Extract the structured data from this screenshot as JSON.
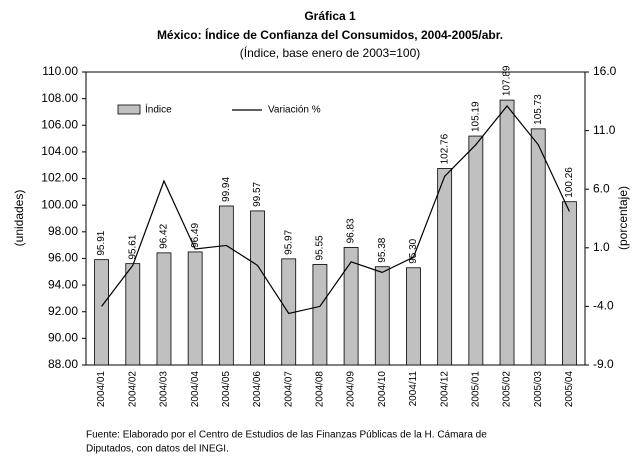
{
  "chart_data": {
    "type": "bar",
    "title": "Gráfica 1",
    "subtitle": "México: Índice de Confianza del Consumidos, 2004-2005/abr.",
    "note": "(Índice, base enero de 2003=100)",
    "ylabel": "(unidades)",
    "y2label": "(porcentaje)",
    "source": [
      "Fuente: Elaborado por el Centro de Estudios de las Finanzas Públicas de la H. Cámara de",
      "Diputados, con datos del INEGI."
    ],
    "categories": [
      "2004/01",
      "2004/02",
      "2004/03",
      "2004/04",
      "2004/05",
      "2004/06",
      "2004/07",
      "2004/08",
      "2004/09",
      "2004/10",
      "2004/11",
      "2004/12",
      "2005/01",
      "2005/02",
      "2005/03",
      "2005/04"
    ],
    "series": [
      {
        "name": "Índice",
        "type": "bar",
        "color": "#c0c0c0",
        "values": [
          95.91,
          95.61,
          96.42,
          96.49,
          99.94,
          99.57,
          95.97,
          95.55,
          96.83,
          95.38,
          95.3,
          102.76,
          105.19,
          107.89,
          105.73,
          100.26
        ],
        "value_labels": [
          "95.91",
          "95.61",
          "96.42",
          "96.49",
          "99.94",
          "99.57",
          "95.97",
          "95.55",
          "96.83",
          "95.38",
          "95.30",
          "102.76",
          "105.19",
          "107.89",
          "105.73",
          "100.26"
        ]
      },
      {
        "name": "Variación %",
        "type": "line",
        "color": "#000000",
        "axis": "y2",
        "values": [
          -4.0,
          -0.5,
          6.7,
          0.9,
          1.2,
          -0.5,
          -4.6,
          -4.0,
          -0.2,
          -1.1,
          0.2,
          7.1,
          9.8,
          13.1,
          9.8,
          4.1
        ]
      }
    ],
    "ylim": [
      88,
      110
    ],
    "yticks": [
      {
        "value": 88,
        "label": "88.00"
      },
      {
        "value": 90,
        "label": "90.00"
      },
      {
        "value": 92,
        "label": "92.00"
      },
      {
        "value": 94,
        "label": "94.00"
      },
      {
        "value": 96,
        "label": "96.00"
      },
      {
        "value": 98,
        "label": "98.00"
      },
      {
        "value": 100,
        "label": "100.00"
      },
      {
        "value": 102,
        "label": "102.00"
      },
      {
        "value": 104,
        "label": "104.00"
      },
      {
        "value": 106,
        "label": "106.00"
      },
      {
        "value": 108,
        "label": "108.00"
      },
      {
        "value": 110,
        "label": "110.00"
      }
    ],
    "y2lim": [
      -9,
      16
    ],
    "y2ticks": [
      {
        "value": -9,
        "label": "-9.0"
      },
      {
        "value": -4,
        "label": "-4.0"
      },
      {
        "value": 1,
        "label": "1.0"
      },
      {
        "value": 6,
        "label": "6.0"
      },
      {
        "value": 11,
        "label": "11.0"
      },
      {
        "value": 16,
        "label": "16.0"
      }
    ],
    "grid": false
  }
}
